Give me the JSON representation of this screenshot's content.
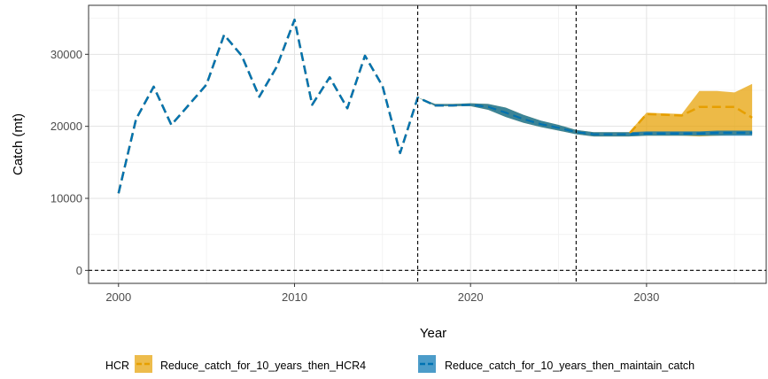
{
  "chart_data": {
    "type": "line",
    "title": "",
    "xlabel": "Year",
    "ylabel": "Catch (mt)",
    "xlim": [
      1998.3,
      2036.8
    ],
    "ylim": [
      -1800,
      36800
    ],
    "xticks": [
      2000,
      2010,
      2020,
      2030
    ],
    "yticks": [
      0,
      10000,
      20000,
      30000
    ],
    "x_tick_labels": [
      "2000",
      "2010",
      "2020",
      "2030"
    ],
    "y_tick_labels": [
      "0",
      "10000",
      "20000",
      "30000"
    ],
    "grid": true,
    "reference_lines": {
      "vertical": [
        2017,
        2026
      ],
      "horizontal": [
        0
      ]
    },
    "legend": {
      "title": "HCR",
      "position": "bottom",
      "entries": [
        "Reduce_catch_for_10_years_then_HCR4",
        "Reduce_catch_for_10_years_then_maintain_catch"
      ]
    },
    "series": [
      {
        "name": "Reduce_catch_for_10_years_then_HCR4",
        "color": "#E69F00",
        "x": [
          2000,
          2001,
          2002,
          2003,
          2004,
          2005,
          2006,
          2007,
          2008,
          2009,
          2010,
          2011,
          2012,
          2013,
          2014,
          2015,
          2016,
          2017,
          2018,
          2019,
          2020,
          2021,
          2022,
          2023,
          2024,
          2025,
          2026,
          2027,
          2028,
          2029,
          2030,
          2031,
          2032,
          2033,
          2034,
          2035,
          2036
        ],
        "median": [
          10700,
          21000,
          25500,
          20200,
          23000,
          25800,
          32700,
          29800,
          24100,
          28300,
          34800,
          23000,
          26800,
          22500,
          29800,
          25600,
          16300,
          24000,
          22900,
          22900,
          23000,
          22700,
          21900,
          21000,
          20300,
          19800,
          19200,
          18900,
          18900,
          18900,
          21700,
          21600,
          21500,
          22700,
          22700,
          22700,
          21200
        ],
        "lower": [
          10700,
          21000,
          25500,
          20200,
          23000,
          25800,
          32700,
          29800,
          24100,
          28300,
          34800,
          23000,
          26800,
          22500,
          29800,
          25600,
          16300,
          24000,
          22800,
          22800,
          22800,
          22300,
          21300,
          20500,
          19900,
          19400,
          18900,
          18600,
          18600,
          18600,
          18700,
          18700,
          18700,
          18600,
          18700,
          18800,
          18800
        ],
        "upper": [
          10700,
          21000,
          25500,
          20200,
          23000,
          25800,
          32700,
          29800,
          24100,
          28300,
          34800,
          23000,
          26800,
          22500,
          29800,
          25600,
          16300,
          24000,
          23100,
          23100,
          23200,
          23100,
          22600,
          21600,
          20800,
          20200,
          19500,
          19200,
          19200,
          19200,
          21900,
          21800,
          21700,
          24900,
          24900,
          24700,
          25900
        ]
      },
      {
        "name": "Reduce_catch_for_10_years_then_maintain_catch",
        "color": "#0072B2",
        "x": [
          2000,
          2001,
          2002,
          2003,
          2004,
          2005,
          2006,
          2007,
          2008,
          2009,
          2010,
          2011,
          2012,
          2013,
          2014,
          2015,
          2016,
          2017,
          2018,
          2019,
          2020,
          2021,
          2022,
          2023,
          2024,
          2025,
          2026,
          2027,
          2028,
          2029,
          2030,
          2031,
          2032,
          2033,
          2034,
          2035,
          2036
        ],
        "median": [
          10700,
          21000,
          25500,
          20200,
          23000,
          25800,
          32700,
          29800,
          24100,
          28300,
          34800,
          23000,
          26800,
          22500,
          29800,
          25600,
          16300,
          24000,
          22900,
          22900,
          23000,
          22700,
          21900,
          21000,
          20300,
          19800,
          19200,
          18900,
          18900,
          18900,
          19000,
          19000,
          19000,
          19000,
          19100,
          19100,
          19100
        ],
        "lower": [
          10700,
          21000,
          25500,
          20200,
          23000,
          25800,
          32700,
          29800,
          24100,
          28300,
          34800,
          23000,
          26800,
          22500,
          29800,
          25600,
          16300,
          24000,
          22800,
          22800,
          22800,
          22300,
          21300,
          20500,
          19900,
          19400,
          18900,
          18600,
          18600,
          18600,
          18700,
          18700,
          18700,
          18700,
          18700,
          18700,
          18700
        ],
        "upper": [
          10700,
          21000,
          25500,
          20200,
          23000,
          25800,
          32700,
          29800,
          24100,
          28300,
          34800,
          23000,
          26800,
          22500,
          29800,
          25600,
          16300,
          24000,
          23100,
          23100,
          23200,
          23100,
          22600,
          21600,
          20800,
          20200,
          19500,
          19200,
          19200,
          19200,
          19300,
          19300,
          19300,
          19300,
          19400,
          19400,
          19400
        ]
      }
    ]
  }
}
